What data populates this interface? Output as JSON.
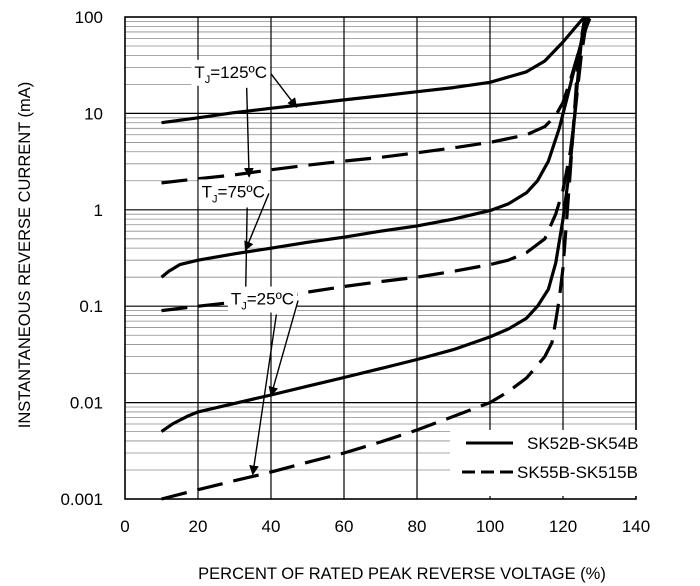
{
  "chart_data": {
    "type": "line",
    "title": "",
    "xlabel": "PERCENT OF RATED PEAK REVERSE VOLTAGE (%)",
    "ylabel": "INSTANTANEOUS REVERSE CURRENT (mA)",
    "x_scale": "linear",
    "y_scale": "log",
    "xlim": [
      0,
      140
    ],
    "ylim": [
      0.001,
      100
    ],
    "x_ticks": [
      "0",
      "20",
      "40",
      "60",
      "80",
      "100",
      "120",
      "140"
    ],
    "y_ticks": [
      "0.001",
      "0.01",
      "0.1",
      "1",
      "10",
      "100"
    ],
    "grid": "major and minor",
    "legend_position": "bottom-right",
    "legend": [
      {
        "label": "SK52B-SK54B",
        "style": "long-dash"
      },
      {
        "label": "SK55B-SK515B",
        "style": "short-dash"
      }
    ],
    "annotations": [
      {
        "text": "T",
        "sub": "J",
        "tail": "=125ºC",
        "series_index": [
          0,
          1
        ]
      },
      {
        "text": "T",
        "sub": "J",
        "tail": "=75ºC",
        "series_index": [
          2,
          3
        ]
      },
      {
        "text": "T",
        "sub": "J",
        "tail": "=25ºC",
        "series_index": [
          4,
          5
        ]
      }
    ],
    "series": [
      {
        "group": "SK52B-SK54B",
        "condition": "TJ=125ºC",
        "style": "solid",
        "x": [
          10,
          20,
          30,
          40,
          50,
          60,
          70,
          80,
          90,
          100,
          110,
          115,
          120,
          123,
          125,
          126
        ],
        "y": [
          8,
          9,
          10.2,
          11.3,
          12.5,
          13.8,
          15.2,
          16.8,
          18.5,
          21,
          27,
          35,
          55,
          75,
          92,
          100
        ]
      },
      {
        "group": "SK55B-SK515B",
        "condition": "TJ=125ºC",
        "style": "dashed",
        "x": [
          10,
          20,
          30,
          40,
          50,
          60,
          70,
          80,
          90,
          100,
          110,
          115,
          118,
          120,
          122,
          124,
          125,
          126.5,
          127.5
        ],
        "y": [
          1.9,
          2.1,
          2.3,
          2.6,
          2.9,
          3.2,
          3.5,
          3.9,
          4.4,
          5.0,
          6.0,
          7.3,
          9.5,
          13,
          22,
          40,
          55,
          80,
          100
        ]
      },
      {
        "group": "SK52B-SK54B",
        "condition": "TJ=75ºC",
        "style": "solid",
        "x": [
          10,
          12,
          15,
          20,
          30,
          40,
          50,
          60,
          70,
          80,
          90,
          100,
          105,
          110,
          113,
          116,
          119,
          121,
          123,
          125,
          126,
          127
        ],
        "y": [
          0.2,
          0.23,
          0.27,
          0.3,
          0.35,
          0.4,
          0.46,
          0.52,
          0.6,
          0.68,
          0.8,
          0.98,
          1.15,
          1.5,
          2.0,
          3.2,
          7,
          14,
          28,
          55,
          80,
          100
        ]
      },
      {
        "group": "SK55B-SK515B",
        "condition": "TJ=75ºC",
        "style": "dashed",
        "x": [
          10,
          20,
          30,
          40,
          50,
          60,
          70,
          80,
          90,
          100,
          105,
          110,
          115,
          118,
          120,
          122,
          123,
          124,
          125,
          126,
          127
        ],
        "y": [
          0.09,
          0.1,
          0.11,
          0.12,
          0.14,
          0.16,
          0.18,
          0.2,
          0.23,
          0.27,
          0.3,
          0.36,
          0.5,
          0.9,
          1.6,
          4,
          8,
          18,
          40,
          70,
          100
        ]
      },
      {
        "group": "SK52B-SK54B",
        "condition": "TJ=25ºC",
        "style": "solid",
        "x": [
          10,
          13,
          17,
          20,
          30,
          40,
          50,
          60,
          70,
          80,
          90,
          100,
          105,
          110,
          113,
          116,
          118,
          120,
          122,
          123,
          124,
          125,
          126
        ],
        "y": [
          0.005,
          0.006,
          0.0072,
          0.008,
          0.0098,
          0.012,
          0.0148,
          0.0182,
          0.0225,
          0.028,
          0.0355,
          0.048,
          0.058,
          0.075,
          0.1,
          0.15,
          0.28,
          0.8,
          3,
          8,
          22,
          55,
          100
        ]
      },
      {
        "group": "SK55B-SK515B",
        "condition": "TJ=25ºC",
        "style": "dashed",
        "x": [
          10,
          20,
          30,
          40,
          50,
          60,
          70,
          80,
          90,
          100,
          105,
          110,
          112,
          115,
          117,
          118,
          119,
          120,
          121,
          122,
          123,
          124,
          125,
          126
        ],
        "y": [
          0.001,
          0.00125,
          0.00155,
          0.0019,
          0.0024,
          0.003,
          0.0039,
          0.0052,
          0.0072,
          0.01,
          0.013,
          0.018,
          0.022,
          0.03,
          0.042,
          0.07,
          0.12,
          0.25,
          0.8,
          2.5,
          9,
          30,
          60,
          100
        ]
      }
    ]
  }
}
